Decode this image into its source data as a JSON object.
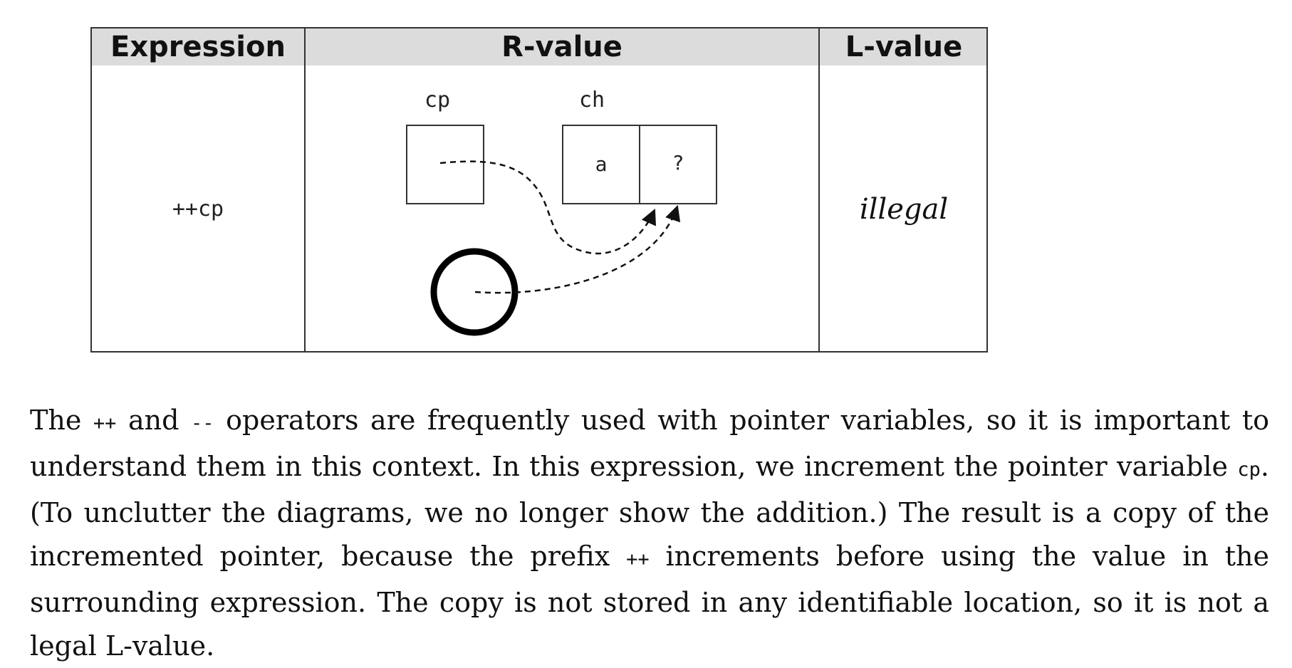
{
  "table": {
    "headers": {
      "expression": "Expression",
      "rvalue": "R-value",
      "lvalue": "L-value"
    },
    "row": {
      "expression": "++cp",
      "lvalue": "illegal"
    },
    "diagram": {
      "cp_label": "cp",
      "ch_label": "ch",
      "ch_cell_0": "a",
      "ch_cell_1": "?"
    }
  },
  "paragraph": {
    "p1": "The ",
    "c1": "++",
    "p2": " and ",
    "c2": "--",
    "p3": " operators are frequently used with pointer variables, so it is important to understand them in this context. In this expression, we increment the pointer variable ",
    "c3": "cp",
    "p4": ". (To unclutter the diagrams, we no longer show the addition.) The result is a copy of the incremented pointer, because the prefix ",
    "c4": "++",
    "p5": " increments before using the value in the surrounding expression. The copy is not stored in any identifiable location, so it is not a legal L-value."
  }
}
